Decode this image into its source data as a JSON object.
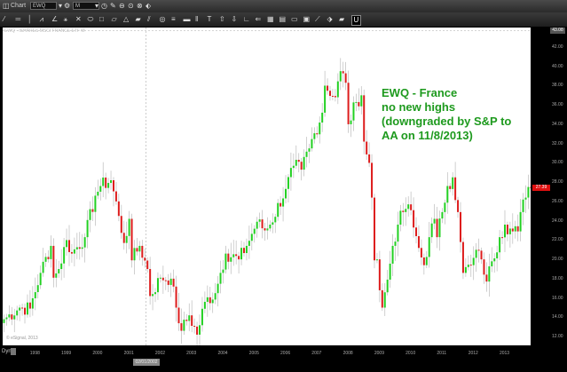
{
  "window": {
    "title": "Chart"
  },
  "toolbar": {
    "symbol": "EWQ",
    "interval": "M",
    "tools": [
      "line-tool",
      "horizontal-line-tool",
      "vertical-line-tool",
      "trend-tool",
      "fib-tool",
      "pitchfork-tool",
      "gann-tool",
      "ellipse-tool",
      "rectangle-tool",
      "parallelogram-tool",
      "triangle-tool",
      "brush-tool",
      "channel-tool",
      "circle-tool",
      "fan-tool",
      "bars-tool",
      "columns-tool",
      "text-tool",
      "marker-tool",
      "arrow-tool",
      "measure-tool",
      "cursor-tool",
      "grid-tool",
      "table-tool",
      "toggle-tool",
      "box-tool",
      "link-tool",
      "erase-tool",
      "template-tool",
      "unlock-tool"
    ]
  },
  "chart": {
    "symbol_info": "EWQ - ISHARES MSCI FRANCE ETF  M",
    "annotation": [
      "EWQ - France",
      "no new highs",
      "(downgraded by S&P to",
      "AA on 11/8/2013)"
    ],
    "copyright": "© eSignal, 2013",
    "last_price": "27.39",
    "top_price": "43.08",
    "cursor_date": "02/01/2002",
    "period_label": "Dyn",
    "colors": {
      "up": "#22d022",
      "down": "#dd1c1c",
      "wick": "#bbbbbb",
      "annotation": "#1e9a1e",
      "price_tag": "#e01010"
    }
  },
  "chart_data": {
    "type": "candlestick",
    "interval": "monthly",
    "ylim": [
      11,
      44
    ],
    "y_ticks": [
      "42.00",
      "40.00",
      "38.00",
      "36.00",
      "34.00",
      "32.00",
      "30.00",
      "28.00",
      "26.00",
      "24.00",
      "22.00",
      "20.00",
      "18.00",
      "16.00",
      "14.00",
      "12.00"
    ],
    "x_ticks": [
      "1998",
      "1999",
      "2000",
      "2001",
      "2002",
      "2003",
      "2004",
      "2005",
      "2006",
      "2007",
      "2008",
      "2009",
      "2010",
      "2011",
      "2012",
      "2013"
    ],
    "closes_keypoints": [
      [
        "1997-01",
        13.8
      ],
      [
        "1997-07",
        15.0
      ],
      [
        "1997-11",
        14.9
      ],
      [
        "1998-03",
        18.6
      ],
      [
        "1998-07",
        21.4
      ],
      [
        "1998-08",
        18.1
      ],
      [
        "1998-10",
        19.0
      ],
      [
        "1999-01",
        22.0
      ],
      [
        "1999-03",
        20.6
      ],
      [
        "1999-08",
        22.3
      ],
      [
        "1999-12",
        26.6
      ],
      [
        "2000-02",
        27.6
      ],
      [
        "2000-06",
        28.2
      ],
      [
        "2000-09",
        24.5
      ],
      [
        "2000-11",
        21.7
      ],
      [
        "2001-01",
        24.2
      ],
      [
        "2001-02",
        19.9
      ],
      [
        "2001-05",
        21.4
      ],
      [
        "2001-08",
        19.0
      ],
      [
        "2001-09",
        16.2
      ],
      [
        "2002-01",
        18.1
      ],
      [
        "2002-05",
        18.0
      ],
      [
        "2002-07",
        15.0
      ],
      [
        "2002-09",
        12.6
      ],
      [
        "2002-12",
        14.2
      ],
      [
        "2003-03",
        12.2
      ],
      [
        "2003-06",
        15.6
      ],
      [
        "2003-10",
        16.5
      ],
      [
        "2003-12",
        18.6
      ],
      [
        "2004-02",
        20.6
      ],
      [
        "2004-07",
        20.0
      ],
      [
        "2004-10",
        21.4
      ],
      [
        "2005-02",
        23.9
      ],
      [
        "2005-05",
        23.0
      ],
      [
        "2005-07",
        23.6
      ],
      [
        "2006-01",
        27.3
      ],
      [
        "2006-04",
        29.7
      ],
      [
        "2006-07",
        29.3
      ],
      [
        "2006-10",
        31.5
      ],
      [
        "2007-03",
        35.2
      ],
      [
        "2007-04",
        38.0
      ],
      [
        "2007-08",
        36.8
      ],
      [
        "2007-10",
        39.5
      ],
      [
        "2007-12",
        38.3
      ],
      [
        "2008-01",
        34.0
      ],
      [
        "2008-04",
        36.3
      ],
      [
        "2008-06",
        37.0
      ],
      [
        "2008-07",
        32.2
      ],
      [
        "2008-09",
        30.0
      ],
      [
        "2008-10",
        26.4
      ],
      [
        "2008-11",
        19.9
      ],
      [
        "2008-12",
        20.0
      ],
      [
        "2009-01",
        16.8
      ],
      [
        "2009-02",
        15.0
      ],
      [
        "2009-04",
        17.9
      ],
      [
        "2009-06",
        21.4
      ],
      [
        "2009-08",
        23.6
      ],
      [
        "2009-10",
        24.9
      ],
      [
        "2009-12",
        25.7
      ],
      [
        "2010-02",
        23.3
      ],
      [
        "2010-05",
        20.2
      ],
      [
        "2010-06",
        19.4
      ],
      [
        "2010-08",
        22.3
      ],
      [
        "2010-10",
        24.2
      ],
      [
        "2010-11",
        22.3
      ],
      [
        "2011-01",
        24.9
      ],
      [
        "2011-03",
        27.6
      ],
      [
        "2011-05",
        28.5
      ],
      [
        "2011-07",
        24.9
      ],
      [
        "2011-08",
        21.8
      ],
      [
        "2011-09",
        18.6
      ],
      [
        "2011-12",
        19.4
      ],
      [
        "2012-03",
        20.9
      ],
      [
        "2012-04",
        20.0
      ],
      [
        "2012-06",
        17.7
      ],
      [
        "2012-08",
        19.8
      ],
      [
        "2012-11",
        22.3
      ],
      [
        "2013-01",
        23.6
      ],
      [
        "2013-04",
        22.9
      ],
      [
        "2013-06",
        22.9
      ],
      [
        "2013-07",
        24.9
      ],
      [
        "2013-09",
        26.4
      ],
      [
        "2013-10",
        27.5
      ],
      [
        "2013-11",
        27.39
      ]
    ]
  }
}
